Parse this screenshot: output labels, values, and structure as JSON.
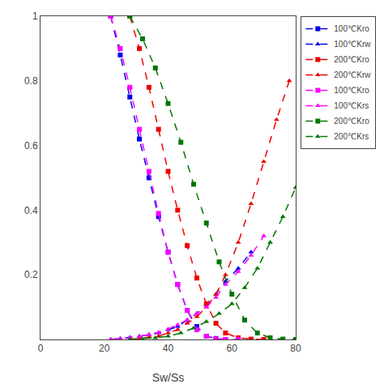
{
  "chart_data": {
    "type": "line",
    "xlabel": "Sw/Ss",
    "xlim": [
      0,
      80
    ],
    "ylim": [
      0,
      1.0
    ],
    "xticks": [
      0,
      20,
      40,
      60,
      80
    ],
    "yticks": [
      0.2,
      0.4,
      0.6,
      0.8,
      1
    ],
    "grid": false,
    "legend": "upper right",
    "series": [
      {
        "name": "100℃Kro",
        "color": "#0000EE",
        "marker": "square",
        "line_style": "dashed",
        "x": [
          22,
          25,
          28,
          31,
          34,
          37,
          40,
          43,
          46,
          49,
          52,
          55,
          58
        ],
        "values": [
          1.0,
          0.88,
          0.75,
          0.62,
          0.5,
          0.38,
          0.27,
          0.17,
          0.09,
          0.04,
          0.01,
          0.003,
          0.0
        ]
      },
      {
        "name": "100℃Krw",
        "color": "#0000EE",
        "marker": "triangle-up",
        "line_style": "dashed",
        "x": [
          22,
          25,
          28,
          31,
          34,
          37,
          40,
          43,
          46,
          49,
          52,
          55,
          58,
          62,
          66
        ],
        "values": [
          0.0,
          0.003,
          0.006,
          0.01,
          0.015,
          0.02,
          0.03,
          0.04,
          0.06,
          0.08,
          0.11,
          0.14,
          0.18,
          0.22,
          0.27
        ]
      },
      {
        "name": "200℃Kro",
        "color": "#EE0000",
        "marker": "square",
        "line_style": "dashed",
        "x": [
          28,
          31,
          34,
          37,
          40,
          43,
          46,
          49,
          52,
          55,
          58,
          62,
          66,
          70
        ],
        "values": [
          1.0,
          0.9,
          0.78,
          0.65,
          0.52,
          0.4,
          0.29,
          0.19,
          0.11,
          0.05,
          0.02,
          0.005,
          0.001,
          0.0
        ]
      },
      {
        "name": "200℃Krw",
        "color": "#EE0000",
        "marker": "triangle-up",
        "line_style": "dashed",
        "x": [
          28,
          31,
          34,
          37,
          40,
          43,
          46,
          49,
          52,
          55,
          58,
          62,
          66,
          70,
          74,
          78
        ],
        "values": [
          0.0,
          0.003,
          0.006,
          0.01,
          0.02,
          0.03,
          0.05,
          0.07,
          0.1,
          0.14,
          0.2,
          0.3,
          0.42,
          0.55,
          0.68,
          0.8
        ]
      },
      {
        "name": "100℃Kro",
        "color": "#FF00FF",
        "marker": "square",
        "line_style": "dashed",
        "x": [
          22,
          25,
          28,
          31,
          34,
          37,
          40,
          43,
          46,
          49,
          52,
          55,
          58,
          62
        ],
        "values": [
          1.0,
          0.9,
          0.78,
          0.65,
          0.52,
          0.39,
          0.27,
          0.17,
          0.09,
          0.03,
          0.01,
          0.002,
          0.0,
          0.0
        ]
      },
      {
        "name": "100℃Krs",
        "color": "#FF00FF",
        "marker": "triangle-up",
        "line_style": "dashed",
        "x": [
          22,
          25,
          28,
          31,
          34,
          37,
          40,
          43,
          46,
          49,
          52,
          55,
          58,
          62,
          66,
          70
        ],
        "values": [
          0.0,
          0.002,
          0.005,
          0.009,
          0.015,
          0.022,
          0.032,
          0.045,
          0.06,
          0.08,
          0.1,
          0.13,
          0.17,
          0.21,
          0.26,
          0.32
        ]
      },
      {
        "name": "200℃Kro",
        "color": "#007700",
        "marker": "square",
        "line_style": "dashed",
        "x": [
          28,
          32,
          36,
          40,
          44,
          48,
          52,
          56,
          60,
          64,
          68,
          72,
          76,
          80
        ],
        "values": [
          1.0,
          0.93,
          0.84,
          0.73,
          0.61,
          0.48,
          0.36,
          0.24,
          0.14,
          0.06,
          0.02,
          0.005,
          0.001,
          0.0
        ]
      },
      {
        "name": "200℃Krs",
        "color": "#007700",
        "marker": "triangle-up",
        "line_style": "dashed",
        "x": [
          28,
          32,
          36,
          40,
          44,
          48,
          52,
          56,
          60,
          64,
          68,
          72,
          76,
          80
        ],
        "values": [
          0.0,
          0.002,
          0.005,
          0.01,
          0.02,
          0.035,
          0.055,
          0.08,
          0.11,
          0.16,
          0.22,
          0.3,
          0.38,
          0.47
        ]
      }
    ]
  }
}
